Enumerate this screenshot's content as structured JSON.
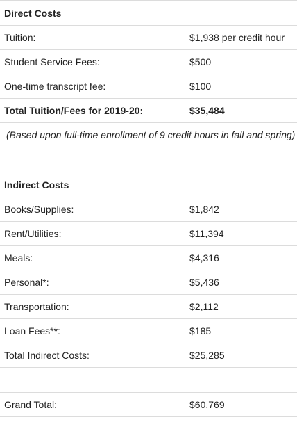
{
  "direct": {
    "heading": "Direct Costs",
    "rows": [
      {
        "label": "Tuition:",
        "value": "$1,938 per credit hour"
      },
      {
        "label": "Student Service Fees:",
        "value": "$500"
      },
      {
        "label": "One-time transcript fee:",
        "value": "$100"
      }
    ],
    "total": {
      "label": "Total Tuition/Fees for 2019-20:",
      "value": "$35,484"
    },
    "note": "(Based upon full-time enrollment of 9 credit hours in fall and spring)"
  },
  "indirect": {
    "heading": "Indirect Costs",
    "rows": [
      {
        "label": "Books/Supplies:",
        "value": "$1,842"
      },
      {
        "label": "Rent/Utilities:",
        "value": "$11,394"
      },
      {
        "label": "Meals:",
        "value": "$4,316"
      },
      {
        "label": "Personal*:",
        "value": "$5,436"
      },
      {
        "label": "Transportation:",
        "value": "$2,112"
      },
      {
        "label": "Loan Fees**:",
        "value": "$185"
      },
      {
        "label": "Total Indirect Costs:",
        "value": "$25,285"
      }
    ]
  },
  "grand_total": {
    "label": "Grand Total:",
    "value": "$60,769"
  }
}
